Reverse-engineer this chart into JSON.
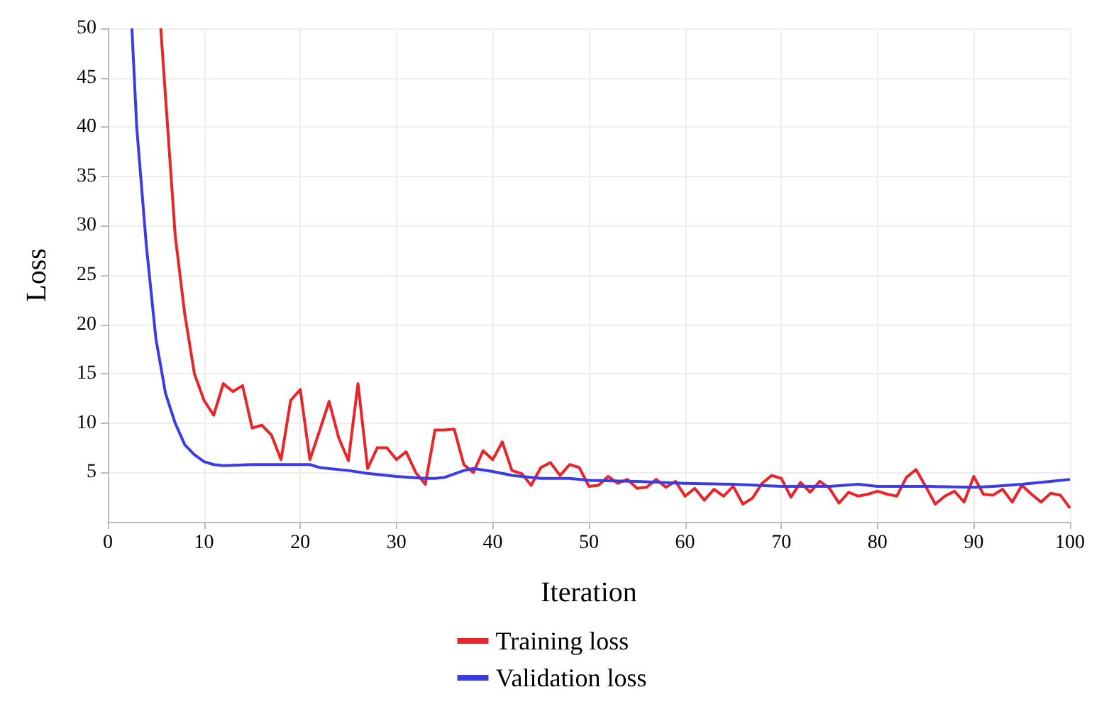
{
  "chart_data": {
    "type": "line",
    "xlabel": "Iteration",
    "ylabel": "Loss",
    "xlim": [
      0,
      100
    ],
    "xticks": [
      0,
      10,
      20,
      30,
      40,
      50,
      60,
      70,
      80,
      90,
      100
    ],
    "ylim": [
      0,
      50
    ],
    "yticks": [
      5,
      10,
      15,
      20,
      25,
      30,
      35,
      40,
      45,
      50
    ],
    "grid": true,
    "legend": "bottom",
    "marker": "none",
    "line_style": "solid",
    "series": [
      {
        "name": "Training loss",
        "color": "#e8262a",
        "x": [
          5.5,
          7,
          8,
          9,
          10,
          11,
          12,
          13,
          14,
          15,
          16,
          17,
          18,
          19,
          20,
          21,
          22,
          23,
          24,
          25,
          26,
          27,
          28,
          29,
          30,
          31,
          32,
          33,
          34,
          35,
          36,
          37,
          38,
          39,
          40,
          41,
          42,
          43,
          44,
          45,
          46,
          47,
          48,
          49,
          50,
          51,
          52,
          53,
          54,
          55,
          56,
          57,
          58,
          59,
          60,
          61,
          62,
          63,
          64,
          65,
          66,
          67,
          68,
          69,
          70,
          71,
          72,
          73,
          74,
          75,
          76,
          77,
          78,
          79,
          80,
          81,
          82,
          83,
          84,
          85,
          86,
          87,
          88,
          89,
          90,
          91,
          92,
          93,
          94,
          95,
          96,
          97,
          98,
          99,
          100
        ],
        "values": [
          50,
          29,
          21,
          15,
          12.3,
          10.8,
          14,
          13.2,
          13.8,
          9.5,
          9.8,
          8.8,
          6.3,
          12.3,
          13.4,
          6.3,
          9.2,
          12.2,
          8.5,
          6.2,
          14,
          5.4,
          7.5,
          7.5,
          6.3,
          7.1,
          5,
          3.8,
          9.3,
          9.3,
          9.4,
          5.8,
          5,
          7.2,
          6.3,
          8.1,
          5.2,
          4.9,
          3.7,
          5.5,
          6,
          4.7,
          5.8,
          5.5,
          3.6,
          3.7,
          4.6,
          3.9,
          4.3,
          3.4,
          3.5,
          4.3,
          3.5,
          4.1,
          2.6,
          3.4,
          2.2,
          3.3,
          2.6,
          3.6,
          1.8,
          2.4,
          3.9,
          4.7,
          4.4,
          2.5,
          4,
          3,
          4.1,
          3.4,
          1.9,
          3,
          2.6,
          2.8,
          3.1,
          2.8,
          2.6,
          4.5,
          5.3,
          3.6,
          1.8,
          2.6,
          3.1,
          2,
          4.6,
          2.8,
          2.7,
          3.3,
          2,
          3.7,
          2.8,
          2,
          2.9,
          2.7,
          1.4
        ]
      },
      {
        "name": "Validation loss",
        "color": "#3c3ce6",
        "x": [
          2.5,
          3,
          4,
          5,
          6,
          7,
          8,
          9,
          10,
          11,
          12,
          15,
          20,
          21,
          22,
          25,
          27,
          30,
          33,
          34,
          35,
          37,
          38,
          40,
          42,
          45,
          48,
          50,
          55,
          60,
          65,
          70,
          75,
          78,
          80,
          85,
          90,
          92,
          95,
          100
        ],
        "values": [
          50,
          40,
          28,
          18.5,
          13,
          10,
          7.8,
          6.8,
          6.1,
          5.8,
          5.7,
          5.8,
          5.8,
          5.8,
          5.5,
          5.2,
          4.9,
          4.6,
          4.4,
          4.4,
          4.5,
          5.2,
          5.4,
          5.1,
          4.7,
          4.4,
          4.4,
          4.2,
          4.1,
          3.9,
          3.8,
          3.6,
          3.6,
          3.8,
          3.6,
          3.6,
          3.5,
          3.6,
          3.8,
          4.3
        ]
      }
    ]
  }
}
